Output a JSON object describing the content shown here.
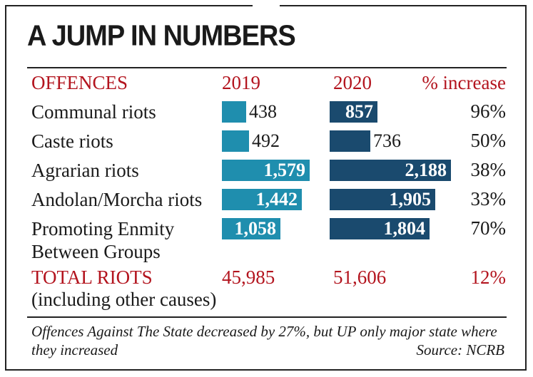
{
  "title": "A JUMP IN NUMBERS",
  "headers": {
    "offences": "OFFENCES",
    "y2019": "2019",
    "y2020": "2020",
    "increase": "% increase"
  },
  "rows": [
    {
      "label": "Communal riots",
      "label_line2": "",
      "v2019": "438",
      "v2020": "857",
      "increase": "96%"
    },
    {
      "label": "Caste riots",
      "label_line2": "",
      "v2019": "492",
      "v2020": "736",
      "increase": "50%"
    },
    {
      "label": "Agrarian riots",
      "label_line2": "",
      "v2019": "1,579",
      "v2020": "2,188",
      "increase": "38%"
    },
    {
      "label": "Andolan/Morcha riots",
      "label_line2": "",
      "v2019": "1,442",
      "v2020": "1,905",
      "increase": "33%"
    },
    {
      "label": "Promoting Enmity",
      "label_line2": "Between Groups",
      "v2019": "1,058",
      "v2020": "1,804",
      "increase": "70%"
    }
  ],
  "total": {
    "label": "TOTAL RIOTS",
    "sublabel": "(including other causes)",
    "v2019": "45,985",
    "v2020": "51,606",
    "increase": "12%"
  },
  "note": "Offences Against The State decreased by 27%, but UP only major state where they increased",
  "source": "Source: NCRB",
  "colors": {
    "accent": "#b3141e",
    "bar_2019": "#1f8eae",
    "bar_2020": "#1a4a6e"
  },
  "chart_data": {
    "type": "bar",
    "title": "A JUMP IN NUMBERS",
    "categories": [
      "Communal riots",
      "Caste riots",
      "Agrarian riots",
      "Andolan/Morcha riots",
      "Promoting Enmity Between Groups"
    ],
    "series": [
      {
        "name": "2019",
        "values": [
          438,
          492,
          1579,
          1442,
          1058
        ]
      },
      {
        "name": "2020",
        "values": [
          857,
          736,
          2188,
          1905,
          1804
        ]
      }
    ],
    "pct_increase": [
      "96%",
      "50%",
      "38%",
      "33%",
      "70%"
    ],
    "total": {
      "label": "TOTAL RIOTS",
      "2019": 45985,
      "2020": 51606,
      "pct_increase": "12%"
    },
    "xlabel": "",
    "ylabel": "",
    "xlim": [
      0,
      2188
    ]
  }
}
